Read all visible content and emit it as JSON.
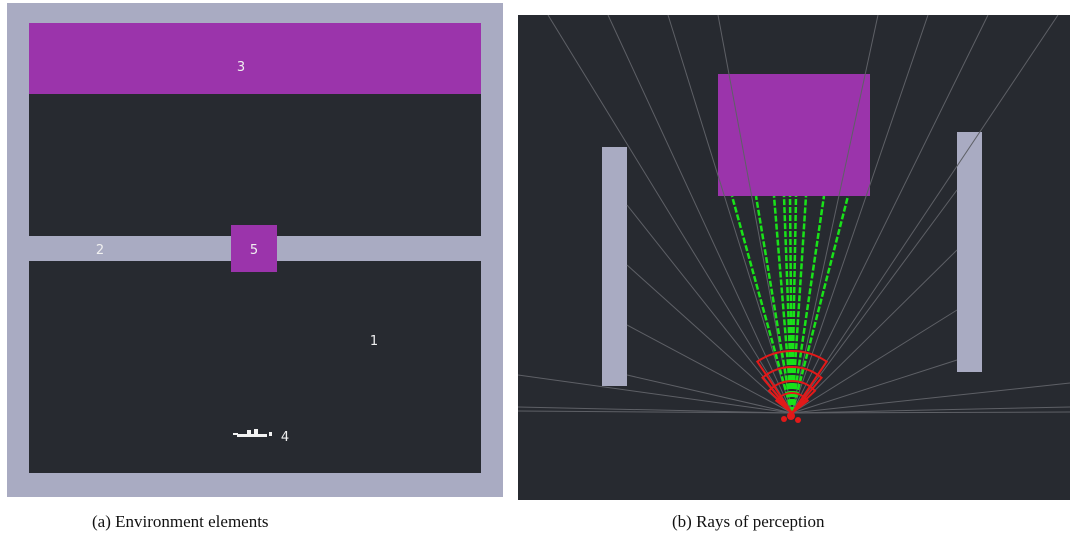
{
  "panel_a": {
    "labels": {
      "element_1": "1",
      "element_2": "2",
      "element_3": "3",
      "element_4": "4",
      "element_5": "5"
    }
  },
  "captions": {
    "a": "(a)  Environment elements",
    "b": "(b)  Rays of perception"
  },
  "colors": {
    "floor": "#272a30",
    "wall": "#a9abc2",
    "target": "#9b34ab",
    "ray_hit": "#19e219",
    "ray_miss": "#5e6066",
    "sensor_arc": "#e21919",
    "agent": "#f2f2f2",
    "label_text": "#f0f0f0"
  }
}
